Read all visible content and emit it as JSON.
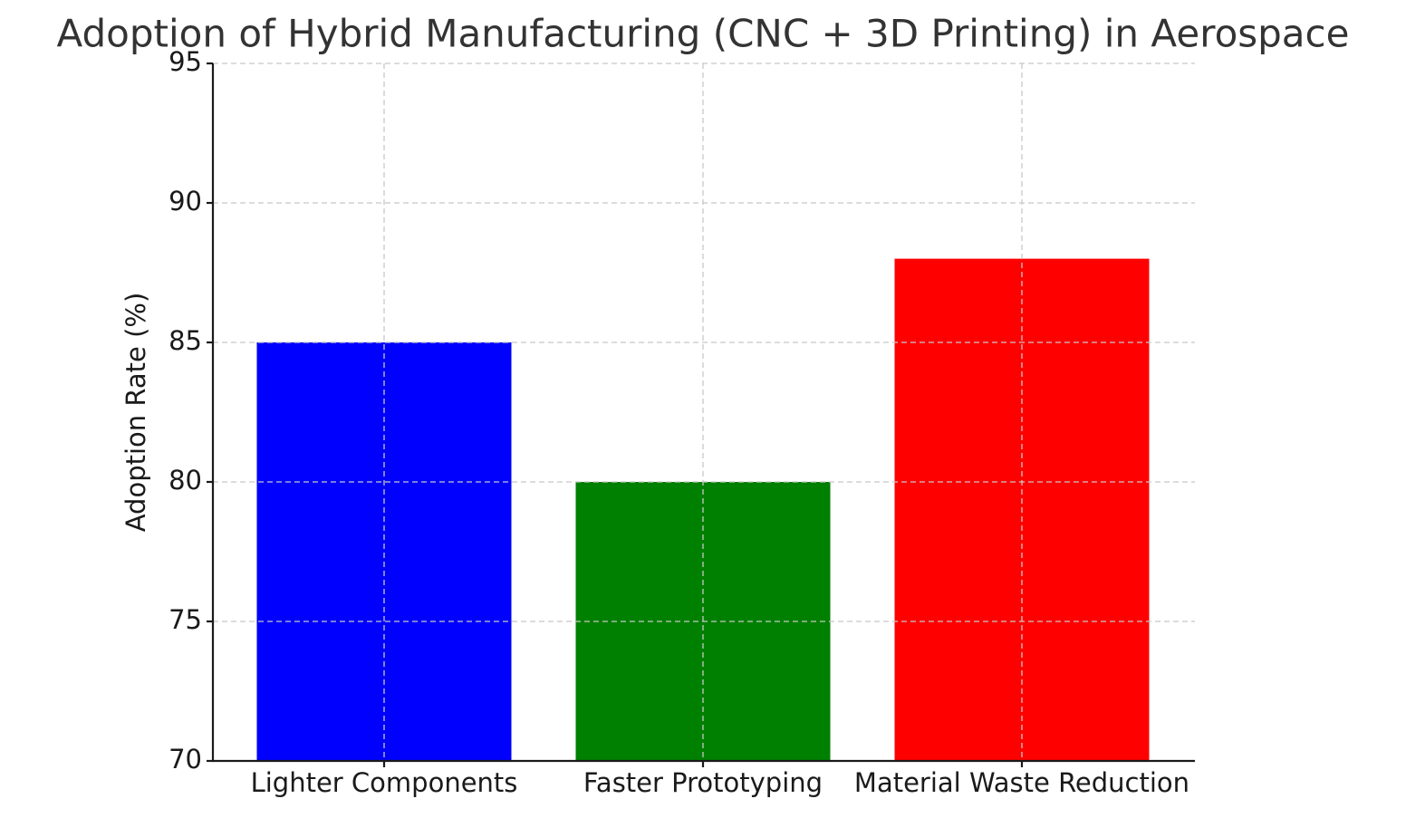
{
  "chart_data": {
    "type": "bar",
    "title": "Adoption of Hybrid Manufacturing (CNC + 3D Printing) in Aerospace",
    "y_label": "Adoption Rate (%)",
    "categories": [
      "Lighter Components",
      "Faster Prototyping",
      "Material Waste Reduction"
    ],
    "values": [
      85,
      80,
      88
    ],
    "colors": [
      "#0000ff",
      "#008000",
      "#ff0000"
    ],
    "ylim": [
      70,
      95
    ],
    "yticks": [
      70,
      75,
      80,
      85,
      90,
      95
    ],
    "grid": true
  }
}
